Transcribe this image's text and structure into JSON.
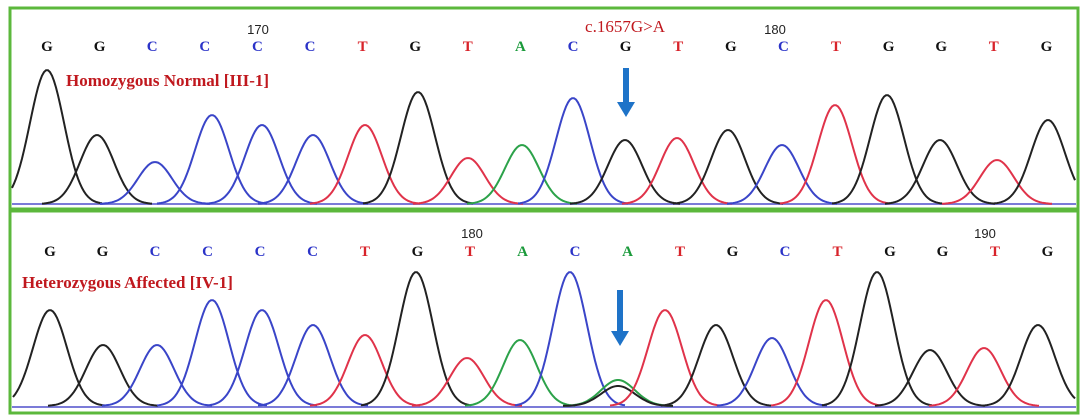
{
  "panels": [
    {
      "label": "Homozygous Normal [III-1]",
      "bases": [
        "G",
        "G",
        "C",
        "C",
        "C",
        "C",
        "T",
        "G",
        "T",
        "A",
        "C",
        "G",
        "T",
        "G",
        "C",
        "T",
        "G",
        "G",
        "T",
        "G"
      ],
      "positions": [
        "170",
        "180"
      ],
      "annotation": "c.1657G>A"
    },
    {
      "label": "Heterozygous Affected [IV-1]",
      "bases": [
        "G",
        "G",
        "C",
        "C",
        "C",
        "C",
        "T",
        "G",
        "T",
        "A",
        "C",
        "A",
        "T",
        "G",
        "C",
        "T",
        "G",
        "G",
        "T",
        "G"
      ],
      "positions": [
        "180",
        "190"
      ]
    }
  ]
}
